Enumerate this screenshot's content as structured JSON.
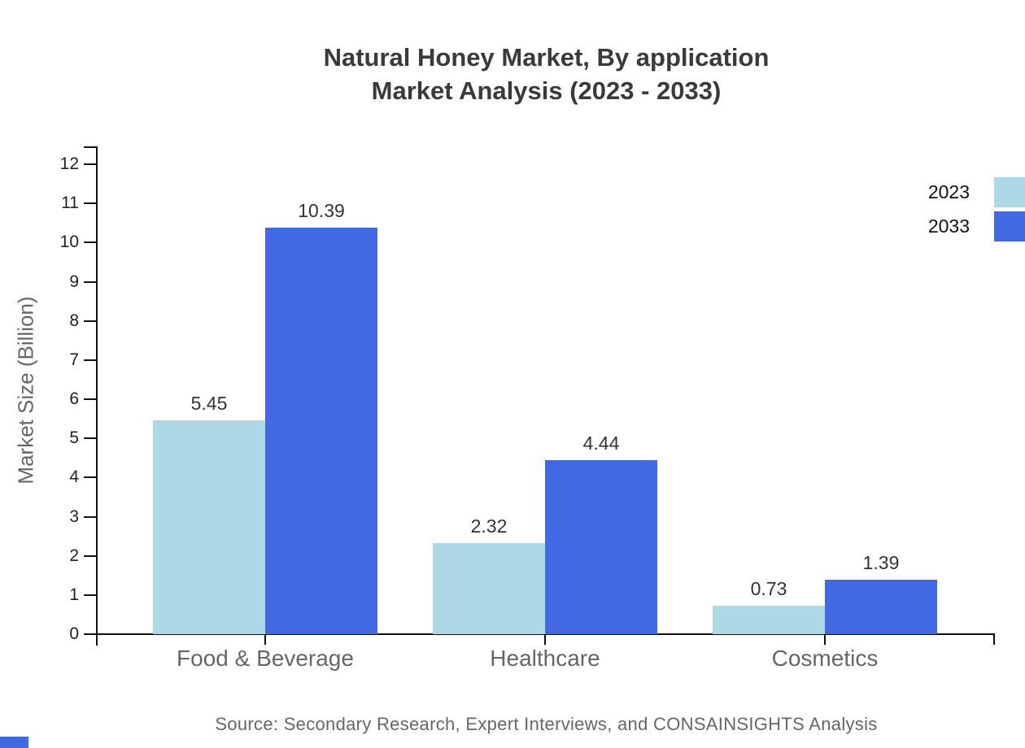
{
  "header": {
    "title_line1": "Natural Honey Market, By application",
    "title_line2": "Market Analysis (2023 - 2033)"
  },
  "axes": {
    "y_title": "Market Size (Billion)"
  },
  "footer": {
    "source": "Source: Secondary Research, Expert Interviews, and CONSAINSIGHTS Analysis"
  },
  "colors": {
    "series_2023": "#ADD8E6",
    "series_2033": "#4169E1",
    "axis": "#111111",
    "tick_label": "#222222",
    "category_label": "#666666",
    "value_label": "#333333",
    "title": "#3a3a3a",
    "source": "#666666",
    "corner_chip": "#4169E1"
  },
  "chart_data": {
    "type": "bar",
    "title": "Natural Honey Market, By application Market Analysis (2023 - 2033)",
    "categories": [
      "Food & Beverage",
      "Healthcare",
      "Cosmetics"
    ],
    "series": [
      {
        "name": "2023",
        "color": "#ADD8E6",
        "values": [
          5.45,
          2.32,
          0.73
        ]
      },
      {
        "name": "2033",
        "color": "#4169E1",
        "values": [
          10.39,
          4.44,
          1.39
        ]
      }
    ],
    "value_labels": [
      "5.45",
      "10.39",
      "2.32",
      "4.44",
      "0.73",
      "1.39"
    ],
    "xlabel": "",
    "ylabel": "Market Size (Billion)",
    "ylim": [
      0,
      12
    ],
    "ytick_step": 1,
    "ytick_labels": [
      "0",
      "1",
      "2",
      "3",
      "4",
      "5",
      "6",
      "7",
      "8",
      "9",
      "10",
      "11",
      "12"
    ],
    "grid": false,
    "legend_position": "top-right",
    "legend_entries": [
      "2023",
      "2033"
    ]
  }
}
